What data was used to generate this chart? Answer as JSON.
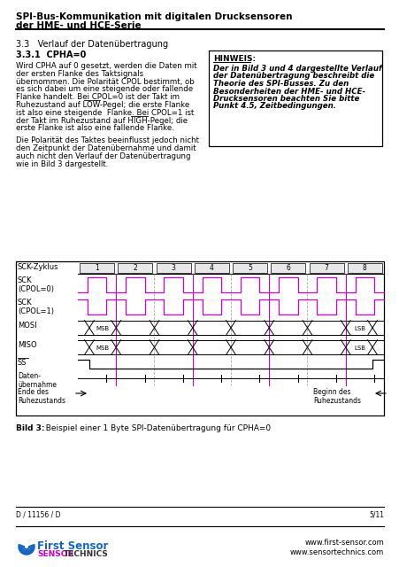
{
  "title_line1": "SPI-Bus-Kommunikation mit digitalen Drucksensoren",
  "title_line2": "der HME- und HCE-Serie",
  "section_title": "3.3   Verlauf der Datenübertragung",
  "subsection_title": "3.3.1  CPHA=0",
  "body_text_left": [
    "Wird CPHA auf 0 gesetzt, werden die Daten mit",
    "der ersten Flanke des Taktsignals",
    "übernommen. Die Polarität CPOL bestimmt, ob",
    "es sich dabei um eine steigende oder fallende",
    "Flanke handelt. Bei CPOL=0 ist der Takt im",
    "Ruhezustand auf LOW-Pegel; die erste Flanke",
    "ist also eine steigende  Flanke. Bei CPOL=1 ist",
    "der Takt im Ruhezustand auf HIGH-Pegel; die",
    "erste Flanke ist also eine fallende Flanke."
  ],
  "body_text_left2": [
    "Die Polarität des Taktes beeinflusst jedoch nicht",
    "den Zeitpunkt der Datenübernahme und damit",
    "auch nicht den Verlauf der Datenübertragung",
    "wie in Bild 3 dargestellt."
  ],
  "hint_title": "HINWEIS:",
  "hint_text": [
    "Der in Bild 3 und 4 dargestellte Verlauf",
    "der Datenübertragung beschreibt die",
    "Theorie des SPI-Busses. Zu den",
    "Besonderheiten der HME- und HCE-",
    "Drucksensoren beachten Sie bitte",
    "Punkt 4.5, Zeitbedingungen."
  ],
  "diagram_row_labels": [
    "SCK-Zyklus",
    "SCK\n(CPOL=0)",
    "SCK\n(CPOL=1)",
    "MOSI",
    "MISO",
    "SS̅",
    "Daten-\nübernahme",
    "Ende des\nRuhezustands"
  ],
  "cycle_numbers": [
    "1",
    "2",
    "3",
    "4",
    "5",
    "6",
    "7",
    "8"
  ],
  "caption_bold": "Bild 3:",
  "caption_rest": "  Beispiel einer 1 Byte SPI-Datenübertragung für CPHA=0",
  "footer_left": "D / 11156 / D",
  "footer_right": "5/11",
  "footer_url1": "www.first-sensor.com",
  "footer_url2": "www.sensortechnics.com",
  "bg_color": "#ffffff",
  "text_color": "#000000",
  "sck_color": "#cc00cc",
  "dashed_color": "#cc00cc",
  "gray_dashed": "#aaaaaa"
}
